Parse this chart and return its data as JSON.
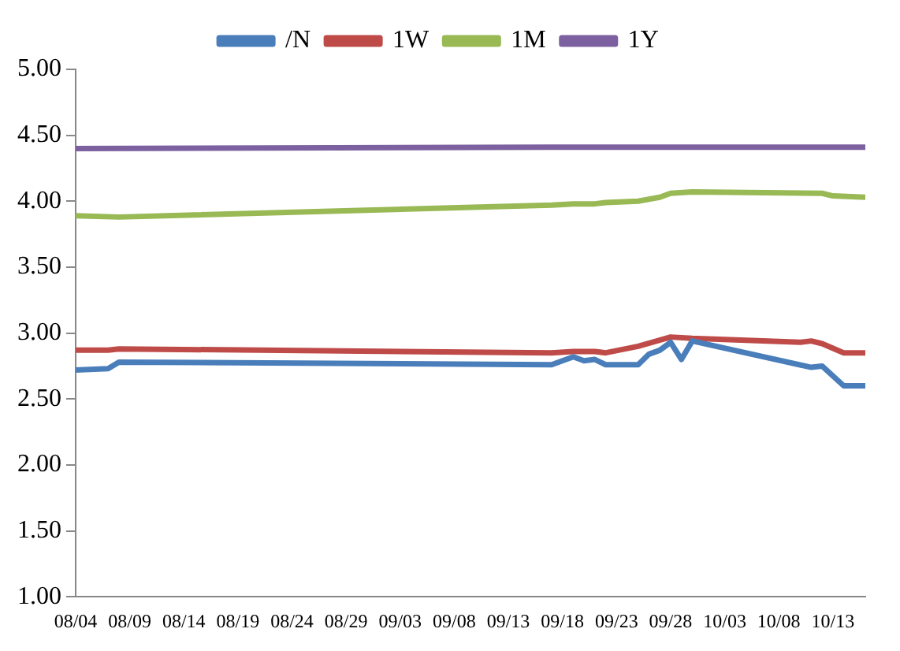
{
  "chart_data": {
    "type": "line",
    "legend": "top",
    "marker": "none",
    "line_style": "solid",
    "xlim": [
      "--08-04",
      "--10-16"
    ],
    "xticks": [
      {
        "value": "--08-04",
        "label": "08/04"
      },
      {
        "value": "--08-09",
        "label": "08/09"
      },
      {
        "value": "--08-14",
        "label": "08/14"
      },
      {
        "value": "--08-19",
        "label": "08/19"
      },
      {
        "value": "--08-24",
        "label": "08/24"
      },
      {
        "value": "--08-29",
        "label": "08/29"
      },
      {
        "value": "--09-03",
        "label": "09/03"
      },
      {
        "value": "--09-08",
        "label": "09/08"
      },
      {
        "value": "--09-13",
        "label": "09/13"
      },
      {
        "value": "--09-18",
        "label": "09/18"
      },
      {
        "value": "--09-23",
        "label": "09/23"
      },
      {
        "value": "--09-28",
        "label": "09/28"
      },
      {
        "value": "--10-03",
        "label": "10/03"
      },
      {
        "value": "--10-08",
        "label": "10/08"
      },
      {
        "value": "--10-13",
        "label": "10/13"
      }
    ],
    "ylim": [
      1,
      5
    ],
    "yticks": [
      {
        "value": 1,
        "label": "1.00"
      },
      {
        "value": 1.5,
        "label": "1.50"
      },
      {
        "value": 2,
        "label": "2.00"
      },
      {
        "value": 2.5,
        "label": "2.50"
      },
      {
        "value": 3,
        "label": "3.00"
      },
      {
        "value": 3.5,
        "label": "3.50"
      },
      {
        "value": 4,
        "label": "4.00"
      },
      {
        "value": 4.5,
        "label": "4.50"
      },
      {
        "value": 5,
        "label": "5.00"
      }
    ],
    "series": [
      {
        "name": "/N",
        "color": "#4a7ebb",
        "x": [
          "--08-04",
          "--08-07",
          "--08-08",
          "--09-17",
          "--09-19",
          "--09-20",
          "--09-21",
          "--09-22",
          "--09-25",
          "--09-26",
          "--09-27",
          "--09-28",
          "--09-29",
          "--09-30",
          "--10-11",
          "--10-12",
          "--10-14",
          "--10-16"
        ],
        "values": [
          2.72,
          2.73,
          2.78,
          2.76,
          2.82,
          2.79,
          2.8,
          2.76,
          2.76,
          2.84,
          2.87,
          2.93,
          2.8,
          2.94,
          2.74,
          2.75,
          2.6,
          2.6
        ]
      },
      {
        "name": "1W",
        "color": "#be4b48",
        "x": [
          "--08-04",
          "--08-07",
          "--08-08",
          "--09-17",
          "--09-19",
          "--09-21",
          "--09-22",
          "--09-25",
          "--09-28",
          "--09-30",
          "--10-10",
          "--10-11",
          "--10-12",
          "--10-14",
          "--10-16"
        ],
        "values": [
          2.87,
          2.87,
          2.88,
          2.85,
          2.86,
          2.86,
          2.85,
          2.9,
          2.97,
          2.96,
          2.93,
          2.94,
          2.92,
          2.85,
          2.85
        ]
      },
      {
        "name": "1M",
        "color": "#98b954",
        "x": [
          "--08-04",
          "--08-08",
          "--09-17",
          "--09-19",
          "--09-21",
          "--09-22",
          "--09-25",
          "--09-27",
          "--09-28",
          "--09-30",
          "--10-12",
          "--10-13",
          "--10-16"
        ],
        "values": [
          3.89,
          3.88,
          3.97,
          3.98,
          3.98,
          3.99,
          4.0,
          4.03,
          4.06,
          4.07,
          4.06,
          4.04,
          4.03
        ]
      },
      {
        "name": "1Y",
        "color": "#7d60a0",
        "x": [
          "--08-04",
          "--09-17",
          "--10-16"
        ],
        "values": [
          4.4,
          4.41,
          4.41
        ]
      }
    ]
  }
}
